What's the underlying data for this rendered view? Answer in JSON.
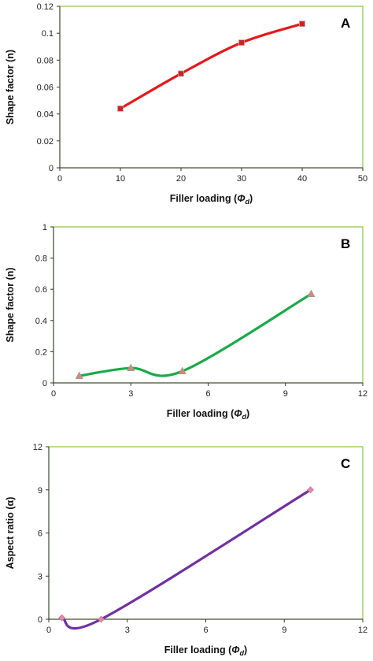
{
  "chart_data": [
    {
      "type": "line",
      "panel_label": "A",
      "xlabel": "Filler loading",
      "xlabel_symbol": "Φ",
      "xlabel_subscript": "d",
      "ylabel": "Shape factor (n)",
      "xlim": [
        0,
        50
      ],
      "ylim": [
        0,
        0.12
      ],
      "xticks": [
        "0",
        "10",
        "20",
        "30",
        "40",
        "50"
      ],
      "yticks": [
        "0",
        "0.02",
        "0.04",
        "0.06",
        "0.08",
        "0.1",
        "0.12"
      ],
      "series": [
        {
          "color": "#e31a1c",
          "marker": "square",
          "marker_color": "#d62020",
          "x": [
            10,
            20,
            30,
            40
          ],
          "y": [
            0.044,
            0.07,
            0.093,
            0.107
          ]
        }
      ],
      "frame_color": "#92c94b",
      "grid": false
    },
    {
      "type": "line",
      "panel_label": "B",
      "xlabel": "Filler loading",
      "xlabel_symbol": "Φ",
      "xlabel_subscript": "d",
      "ylabel": "Shape factor (n)",
      "xlim": [
        0,
        12
      ],
      "ylim": [
        0,
        1
      ],
      "xticks": [
        "0",
        "3",
        "6",
        "9",
        "12"
      ],
      "yticks": [
        "0",
        "0.2",
        "0.4",
        "0.6",
        "0.8",
        "1"
      ],
      "series": [
        {
          "color": "#1aaa4a",
          "marker": "triangle",
          "marker_color": "#d08a7a",
          "x": [
            1,
            3,
            5,
            10
          ],
          "y": [
            0.045,
            0.095,
            0.075,
            0.57
          ]
        }
      ],
      "frame_color": "#92c94b",
      "grid": false
    },
    {
      "type": "line",
      "panel_label": "C",
      "xlabel": "Filler loading",
      "xlabel_symbol": "Φ",
      "xlabel_subscript": "d",
      "ylabel": "Aspect ratio (α)",
      "xlim": [
        0,
        12
      ],
      "ylim": [
        0,
        12
      ],
      "xticks": [
        "0",
        "3",
        "6",
        "9",
        "12"
      ],
      "yticks": [
        "0",
        "3",
        "6",
        "9",
        "12"
      ],
      "series": [
        {
          "color": "#7030a0",
          "marker": "diamond",
          "marker_color": "#e08aa8",
          "x": [
            0.5,
            2,
            10
          ],
          "y": [
            0.1,
            0,
            9
          ]
        }
      ],
      "frame_color": "#92c94b",
      "grid": false
    }
  ]
}
